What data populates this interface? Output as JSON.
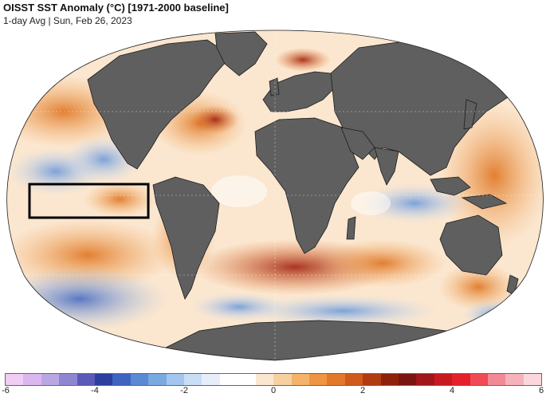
{
  "header": {
    "title": "OISST SST Anomaly (°C) [1971-2000 baseline]",
    "subtitle": "1-day Avg | Sun, Feb 26, 2023"
  },
  "colors": {
    "land": "#5f5f5f",
    "land_border": "#1c1c1c",
    "highlight_box": "#000000"
  },
  "colorbar": {
    "range": [
      -6,
      6
    ],
    "ticks": [
      "-6",
      "-4",
      "-2",
      "0",
      "2",
      "4",
      "6"
    ],
    "colors": [
      "#f2cdf3",
      "#dcb6ee",
      "#b9a7e4",
      "#8f86d2",
      "#5a5ab8",
      "#2c3f9e",
      "#3e64c0",
      "#5a8ad4",
      "#7aa9e0",
      "#a3c6ee",
      "#c9def6",
      "#e6eff9",
      "#ffffff",
      "#ffffff",
      "#fbe6cf",
      "#f8cf9f",
      "#f4b26c",
      "#ee9442",
      "#e2782a",
      "#cf5a1c",
      "#b23c12",
      "#8e200c",
      "#7a1410",
      "#a0161a",
      "#c81820",
      "#e4202a",
      "#ef4a55",
      "#f28a95",
      "#f6b2bb",
      "#fbd7dc"
    ]
  },
  "map": {
    "projection": "robinson",
    "highlight_region": "Niño 3.4 box (equatorial Pacific)"
  }
}
